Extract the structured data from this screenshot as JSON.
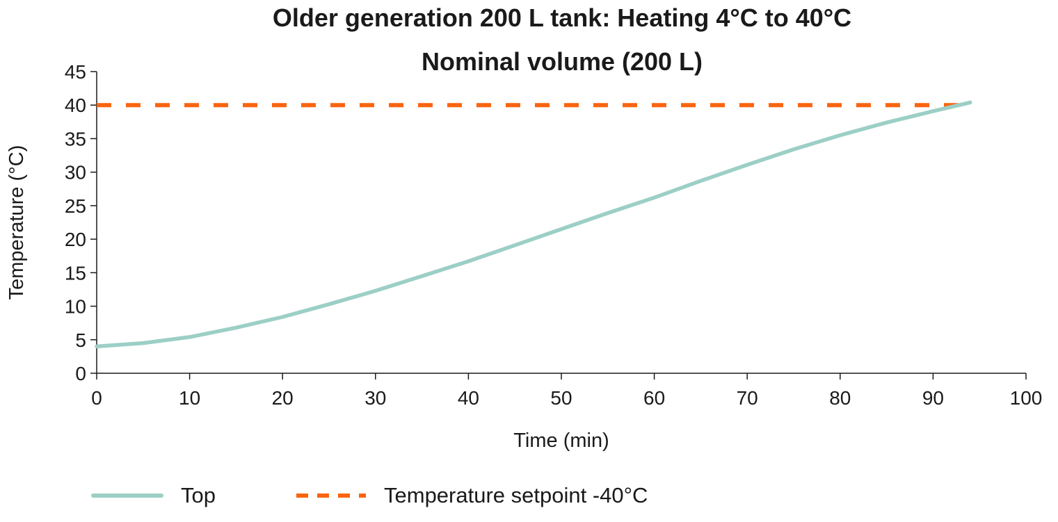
{
  "chart_data": {
    "type": "line",
    "title": "Older generation 200 L tank: Heating 4°C to 40°C",
    "subtitle": "Nominal volume (200 L)",
    "xlabel": "Time (min)",
    "ylabel": "Temperature (°C)",
    "xlim": [
      0,
      100
    ],
    "ylim": [
      0,
      45
    ],
    "xticks": [
      0,
      10,
      20,
      30,
      40,
      50,
      60,
      70,
      80,
      90,
      100
    ],
    "yticks": [
      0,
      5,
      10,
      15,
      20,
      25,
      30,
      35,
      40,
      45
    ],
    "grid": false,
    "legend_position": "bottom",
    "series": [
      {
        "name": "Top",
        "style": "solid",
        "color": "#9ccfc6",
        "x": [
          0,
          5,
          10,
          15,
          20,
          25,
          30,
          35,
          40,
          45,
          50,
          55,
          60,
          65,
          70,
          75,
          80,
          85,
          90,
          94
        ],
        "y": [
          4,
          4.5,
          5.4,
          6.8,
          8.4,
          10.3,
          12.3,
          14.5,
          16.7,
          19.1,
          21.5,
          23.9,
          26.2,
          28.7,
          31.1,
          33.4,
          35.5,
          37.4,
          39.1,
          40.4
        ]
      },
      {
        "name": "Temperature setpoint -40°C",
        "style": "dashed",
        "color": "#fa6410",
        "x": [
          0,
          94
        ],
        "y": [
          40,
          40
        ]
      }
    ]
  }
}
